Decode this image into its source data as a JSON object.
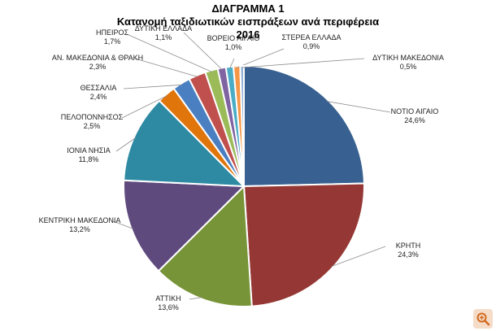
{
  "chart_data": {
    "type": "pie",
    "title": "ΔΙΑΓΡΑΜΜΑ 1",
    "subtitle": "Κατανομή ταξιδιωτικών εισπράξεων ανά περιφέρεια",
    "year": "2016",
    "slices": [
      {
        "label": "ΝΟΤΙΟ ΑΙΓΑΙΟ",
        "value": 24.6,
        "value_text": "24,6%",
        "color": "#386090"
      },
      {
        "label": "ΚΡΗΤΗ",
        "value": 24.3,
        "value_text": "24,3%",
        "color": "#953835"
      },
      {
        "label": "ΑΤΤΙΚΗ",
        "value": 13.6,
        "value_text": "13,6%",
        "color": "#779439"
      },
      {
        "label": "ΚΕΝΤΡΙΚΗ ΜΑΚΕΔΟΝΙΑ",
        "value": 13.2,
        "value_text": "13,2%",
        "color": "#5f4a7e"
      },
      {
        "label": "ΙΟΝΙΑ ΝΗΣΙΑ",
        "value": 11.8,
        "value_text": "11,8%",
        "color": "#2e8aa3"
      },
      {
        "label": "ΠΕΛΟΠΟΝΝΗΣΟΣ",
        "value": 2.5,
        "value_text": "2,5%",
        "color": "#e0750c"
      },
      {
        "label": "ΘΕΣΣΑΛΙΑ",
        "value": 2.4,
        "value_text": "2,4%",
        "color": "#4a7fc1"
      },
      {
        "label": "ΑΝ. ΜΑΚΕΔΟΝΙΑ & ΘΡΑΚΗ",
        "value": 2.3,
        "value_text": "2,3%",
        "color": "#c0504d"
      },
      {
        "label": "ΗΠΕΙΡΟΣ",
        "value": 1.7,
        "value_text": "1,7%",
        "color": "#9bbb59"
      },
      {
        "label": "ΔΥΤΙΚΗ ΕΛΛΑΔΑ",
        "value": 1.1,
        "value_text": "1,1%",
        "color": "#8064a2"
      },
      {
        "label": "ΒΟΡΕΙΟ ΑΙΓΑΙΟ",
        "value": 1.0,
        "value_text": "1,0%",
        "color": "#4bacc6"
      },
      {
        "label": "ΣΤΕΡΕΑ ΕΛΛΑΔΑ",
        "value": 0.9,
        "value_text": "0,9%",
        "color": "#f79646"
      },
      {
        "label": "ΔΥΤΙΚΗ ΜΑΚΕΔΟΝΙΑ",
        "value": 0.5,
        "value_text": "0,5%",
        "color": "#95b3d7"
      }
    ],
    "legend": "none"
  },
  "zoom_icon": "magnifier-plus-icon",
  "zoom_icon_color": "#d2691e"
}
